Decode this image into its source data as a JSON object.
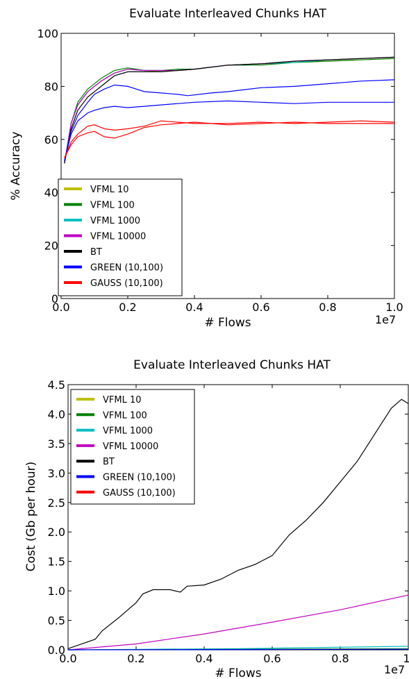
{
  "chart_data": [
    {
      "type": "line",
      "title": "Evaluate Interleaved Chunks HAT",
      "xlabel": "# Flows",
      "ylabel": "% Accuracy",
      "x_offset_label": "1e7",
      "xlim": [
        0,
        1.0
      ],
      "ylim": [
        0,
        100
      ],
      "x_ticks": [
        "0.0",
        "0.2",
        "0.4",
        "0.6",
        "0.8",
        "1.0"
      ],
      "y_ticks": [
        "0",
        "20",
        "40",
        "60",
        "80",
        "100"
      ],
      "legend_position": "lower-left",
      "legend": [
        {
          "name": "VFML 10",
          "color": "#bfbf00"
        },
        {
          "name": "VFML 100",
          "color": "#008000"
        },
        {
          "name": "VFML 1000",
          "color": "#00bfbf"
        },
        {
          "name": "VFML 10000",
          "color": "#bf00bf"
        },
        {
          "name": "BT",
          "color": "#000000"
        },
        {
          "name": "GREEN (10,100)",
          "color": "#0000ff"
        },
        {
          "name": "GAUSS (10,100)",
          "color": "#ff0000"
        }
      ],
      "series": [
        {
          "name": "VFML 10",
          "color": "#bfbf00",
          "x": [
            0.01,
            0.03,
            0.05,
            0.08,
            0.12,
            0.16,
            0.2,
            0.25,
            0.3,
            0.35,
            0.4,
            0.5,
            0.6,
            0.7,
            0.8,
            0.9,
            1.0
          ],
          "values": [
            51,
            66,
            73,
            78,
            82,
            85,
            86.5,
            86,
            85.5,
            86,
            86.5,
            88,
            88.5,
            89,
            89.5,
            90,
            90.5
          ]
        },
        {
          "name": "VFML 100",
          "color": "#008000",
          "x": [
            0.01,
            0.03,
            0.05,
            0.08,
            0.12,
            0.16,
            0.2,
            0.25,
            0.3,
            0.35,
            0.4,
            0.5,
            0.6,
            0.7,
            0.8,
            0.9,
            1.0
          ],
          "values": [
            51,
            66,
            74,
            79,
            83,
            86,
            87,
            86,
            86,
            86.5,
            86.5,
            88,
            88,
            89,
            89.5,
            90,
            90.5
          ]
        },
        {
          "name": "VFML 1000",
          "color": "#00bfbf",
          "x": [
            0.01,
            0.03,
            0.05,
            0.08,
            0.12,
            0.16,
            0.2,
            0.25,
            0.3,
            0.35,
            0.4,
            0.5,
            0.6,
            0.7,
            0.8,
            0.9,
            1.0
          ],
          "values": [
            51,
            66,
            73,
            78,
            82,
            85,
            86.5,
            86,
            86,
            86,
            86.5,
            88,
            88.5,
            89,
            90,
            90.5,
            91
          ]
        },
        {
          "name": "VFML 10000",
          "color": "#bf00bf",
          "x": [
            0.01,
            0.03,
            0.05,
            0.08,
            0.12,
            0.16,
            0.2,
            0.25,
            0.3,
            0.35,
            0.4,
            0.5,
            0.6,
            0.7,
            0.8,
            0.9,
            1.0
          ],
          "values": [
            51,
            66,
            73,
            78,
            82,
            85,
            86.5,
            86,
            86,
            86,
            86.5,
            88,
            88.5,
            89.5,
            90,
            90.5,
            91
          ]
        },
        {
          "name": "BT",
          "color": "#000000",
          "x": [
            0.01,
            0.03,
            0.05,
            0.08,
            0.12,
            0.16,
            0.2,
            0.25,
            0.3,
            0.35,
            0.4,
            0.5,
            0.6,
            0.7,
            0.8,
            0.9,
            1.0
          ],
          "values": [
            51,
            64,
            71,
            76,
            80,
            84,
            85.5,
            85.5,
            85.5,
            86,
            86.5,
            88,
            88.5,
            89.5,
            90,
            90.5,
            91
          ]
        },
        {
          "name": "GREEN (10,100) a",
          "color": "#0000ff",
          "x": [
            0.01,
            0.03,
            0.05,
            0.08,
            0.1,
            0.13,
            0.16,
            0.2,
            0.25,
            0.3,
            0.35,
            0.38,
            0.45,
            0.5,
            0.6,
            0.7,
            0.8,
            0.9,
            1.0
          ],
          "values": [
            52,
            63,
            69,
            74,
            77,
            79,
            80.5,
            80,
            78,
            77.5,
            77,
            76.5,
            77.5,
            78,
            79.5,
            80,
            81,
            82,
            82.5
          ]
        },
        {
          "name": "GREEN (10,100) b",
          "color": "#0000ff",
          "x": [
            0.01,
            0.03,
            0.05,
            0.08,
            0.1,
            0.13,
            0.16,
            0.2,
            0.25,
            0.3,
            0.35,
            0.4,
            0.5,
            0.6,
            0.7,
            0.8,
            0.9,
            1.0
          ],
          "values": [
            52,
            62,
            67,
            70,
            71,
            72,
            72.5,
            72,
            72.5,
            73,
            73.5,
            74,
            74.5,
            74,
            73.5,
            74,
            74,
            74
          ]
        },
        {
          "name": "GAUSS (10,100) a",
          "color": "#ff0000",
          "x": [
            0.01,
            0.03,
            0.05,
            0.08,
            0.1,
            0.13,
            0.16,
            0.2,
            0.25,
            0.3,
            0.35,
            0.4,
            0.5,
            0.6,
            0.7,
            0.8,
            0.9,
            1.0
          ],
          "values": [
            53,
            59,
            62,
            65,
            65.5,
            64,
            63.5,
            64,
            65,
            67,
            66.5,
            66,
            66,
            66.5,
            66,
            66.5,
            67,
            66.5
          ]
        },
        {
          "name": "GAUSS (10,100) b",
          "color": "#ff0000",
          "x": [
            0.01,
            0.03,
            0.05,
            0.08,
            0.1,
            0.13,
            0.16,
            0.2,
            0.25,
            0.3,
            0.35,
            0.4,
            0.5,
            0.6,
            0.7,
            0.8,
            0.9,
            1.0
          ],
          "values": [
            53,
            58,
            61,
            62.5,
            63,
            61,
            60.5,
            62,
            64.5,
            65.5,
            66,
            66.5,
            65.5,
            66,
            66.5,
            66,
            66,
            66
          ]
        }
      ]
    },
    {
      "type": "line",
      "title": "Evaluate Interleaved Chunks HAT",
      "xlabel": "# Flows",
      "ylabel": "Cost (Gb per hour)",
      "x_offset_label": "1e7",
      "xlim": [
        0,
        1.0
      ],
      "ylim": [
        0,
        4.5
      ],
      "x_ticks": [
        "0.0",
        "0.2",
        "0.4",
        "0.6",
        "0.8",
        "1."
      ],
      "y_ticks": [
        "0.0",
        "0.5",
        "1.0",
        "1.5",
        "2.0",
        "2.5",
        "3.0",
        "3.5",
        "4.0",
        "4.5"
      ],
      "legend_position": "upper-left",
      "legend": [
        {
          "name": "VFML 10",
          "color": "#bfbf00"
        },
        {
          "name": "VFML 100",
          "color": "#008000"
        },
        {
          "name": "VFML 1000",
          "color": "#00bfbf"
        },
        {
          "name": "VFML 10000",
          "color": "#bf00bf"
        },
        {
          "name": "BT",
          "color": "#000000"
        },
        {
          "name": "GREEN (10,100)",
          "color": "#0000ff"
        },
        {
          "name": "GAUSS (10,100)",
          "color": "#ff0000"
        }
      ],
      "series": [
        {
          "name": "BT",
          "color": "#000000",
          "x": [
            0.0,
            0.05,
            0.08,
            0.1,
            0.15,
            0.2,
            0.22,
            0.25,
            0.3,
            0.33,
            0.35,
            0.4,
            0.45,
            0.5,
            0.55,
            0.6,
            0.65,
            0.7,
            0.75,
            0.8,
            0.85,
            0.9,
            0.95,
            0.98,
            1.0
          ],
          "values": [
            0.02,
            0.12,
            0.18,
            0.32,
            0.55,
            0.8,
            0.95,
            1.02,
            1.02,
            0.98,
            1.08,
            1.1,
            1.2,
            1.35,
            1.45,
            1.6,
            1.95,
            2.2,
            2.5,
            2.85,
            3.2,
            3.65,
            4.1,
            4.25,
            4.18
          ]
        },
        {
          "name": "VFML 10000",
          "color": "#bf00bf",
          "x": [
            0.0,
            0.2,
            0.4,
            0.6,
            0.8,
            1.0
          ],
          "values": [
            0.0,
            0.1,
            0.27,
            0.47,
            0.68,
            0.93
          ]
        },
        {
          "name": "VFML 1000",
          "color": "#00bfbf",
          "x": [
            0.0,
            0.5,
            1.0
          ],
          "values": [
            0.0,
            0.02,
            0.06
          ]
        },
        {
          "name": "VFML 100",
          "color": "#008000",
          "x": [
            0.0,
            0.5,
            1.0
          ],
          "values": [
            0.0,
            0.01,
            0.02
          ]
        },
        {
          "name": "GREEN (10,100)",
          "color": "#0000ff",
          "x": [
            0.0,
            0.5,
            1.0
          ],
          "values": [
            0.0,
            0.005,
            0.01
          ]
        }
      ]
    }
  ]
}
